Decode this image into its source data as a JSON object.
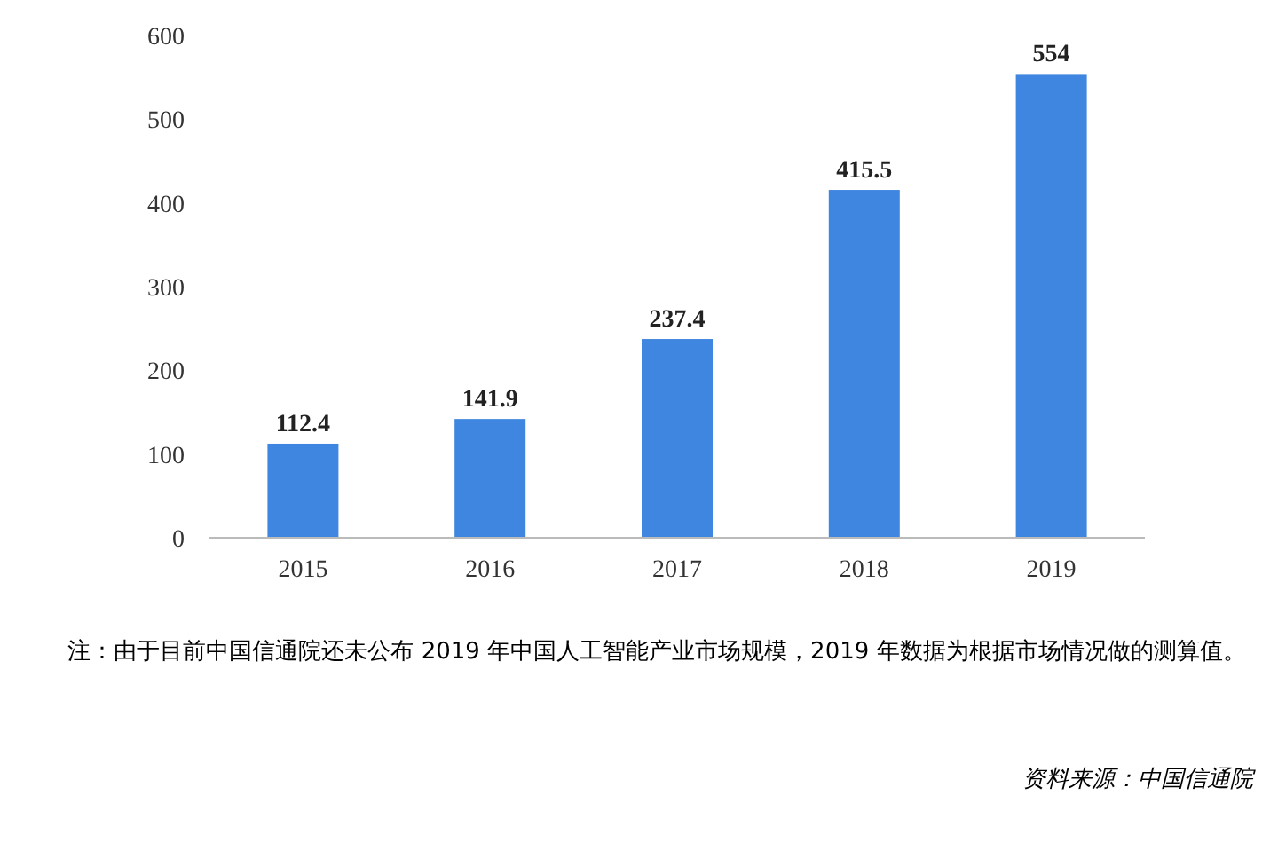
{
  "chart_data": {
    "type": "bar",
    "categories": [
      "2015",
      "2016",
      "2017",
      "2018",
      "2019"
    ],
    "values": [
      112.4,
      141.9,
      237.4,
      415.5,
      554
    ],
    "color": "#3f86e0",
    "ylim": [
      0,
      600
    ],
    "yticks": [
      0,
      100,
      200,
      300,
      400,
      500,
      600
    ],
    "data_labels": true,
    "annotations": [
      "注：由于目前中国信通院还未公布 2019 年中国人工智能产业市场规模，2019 年数据为根据市场情况做的测算值。",
      "资料来源：中国信通院"
    ]
  }
}
